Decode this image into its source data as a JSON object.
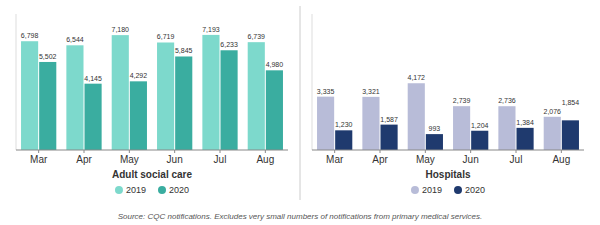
{
  "chart_data": [
    {
      "type": "bar",
      "xlabel": "Adult social care",
      "categories": [
        "Mar",
        "Apr",
        "May",
        "Jun",
        "Jul",
        "Aug"
      ],
      "series": [
        {
          "name": "2019",
          "color": "#7dd9cc",
          "values": [
            6798,
            6544,
            7180,
            6719,
            7193,
            6739
          ],
          "value_labels": [
            "6,798",
            "6,544",
            "7,180",
            "6,719",
            "7,193",
            "6,739"
          ]
        },
        {
          "name": "2020",
          "color": "#3aada0",
          "values": [
            5502,
            4145,
            4292,
            5845,
            6233,
            4980
          ],
          "value_labels": [
            "5,502",
            "4,145",
            "4,292",
            "5,845",
            "6,233",
            "4,980"
          ]
        }
      ],
      "ylim": [
        0,
        8500
      ],
      "grid": false,
      "legend": "bottom",
      "data_labels": true,
      "tick_labels": "x",
      "annotations": [
        "Source: CQC notifications. Excludes very small numbers of notifications from primary medical services."
      ]
    },
    {
      "type": "bar",
      "xlabel": "Hospitals",
      "categories": [
        "Mar",
        "Apr",
        "May",
        "Jun",
        "Jul",
        "Aug"
      ],
      "series": [
        {
          "name": "2019",
          "color": "#b8bcd8",
          "values": [
            3335,
            3321,
            4172,
            2739,
            2736,
            2076
          ],
          "value_labels": [
            "3,335",
            "3,321",
            "4,172",
            "2,739",
            "2,736",
            "2,076"
          ]
        },
        {
          "name": "2020",
          "color": "#1f3a6e",
          "values": [
            1230,
            1587,
            993,
            1204,
            1384,
            1854
          ],
          "value_labels": [
            "1,230",
            "1,587",
            "993",
            "1,204",
            "1,384",
            "1,854"
          ]
        }
      ],
      "ylim": [
        0,
        8500
      ],
      "grid": false,
      "legend": "bottom",
      "data_labels": true,
      "tick_labels": "x"
    }
  ]
}
